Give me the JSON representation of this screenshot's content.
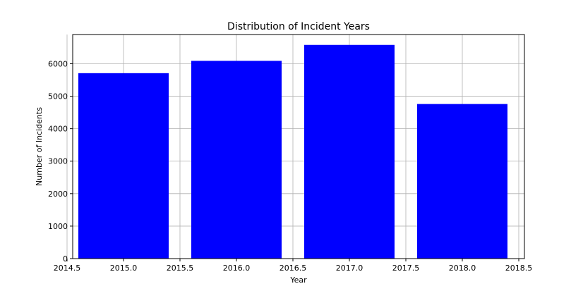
{
  "chart_data": {
    "type": "bar",
    "title": "Distribution of Incident Years",
    "xlabel": "Year",
    "ylabel": "Number of Incidents",
    "x": [
      2015,
      2016,
      2017,
      2018
    ],
    "values": [
      5710,
      6090,
      6580,
      4760
    ],
    "bar_width": 0.8,
    "bar_color": "#0000ff",
    "xlim": [
      2014.55,
      2018.55
    ],
    "ylim": [
      0,
      6900
    ],
    "xticks": [
      2014.5,
      2015.0,
      2015.5,
      2016.0,
      2016.5,
      2017.0,
      2017.5,
      2018.0,
      2018.5
    ],
    "xtick_labels": [
      "2014.5",
      "2015.0",
      "2015.5",
      "2016.0",
      "2016.5",
      "2017.0",
      "2017.5",
      "2018.0",
      "2018.5"
    ],
    "yticks": [
      0,
      1000,
      2000,
      3000,
      4000,
      5000,
      6000
    ],
    "ytick_labels": [
      "0",
      "1000",
      "2000",
      "3000",
      "4000",
      "5000",
      "6000"
    ],
    "grid": true
  }
}
